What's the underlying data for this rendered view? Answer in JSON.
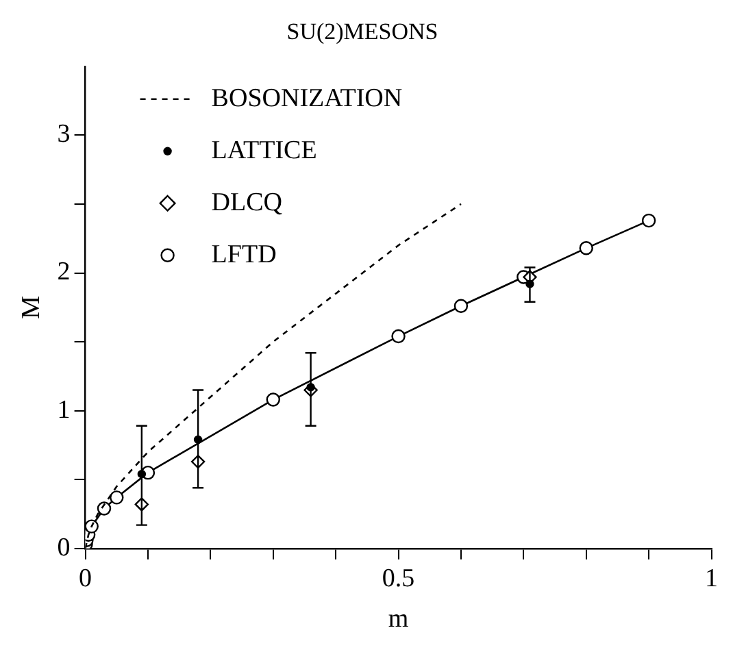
{
  "chart_data": {
    "type": "line",
    "title": "SU(2)MESONS",
    "xlabel": "m",
    "ylabel": "M",
    "xlim": [
      0,
      1
    ],
    "xticks": [
      0,
      {
        "value": 0.1,
        "label": null
      },
      {
        "value": 0.2,
        "label": null
      },
      {
        "value": 0.3,
        "label": null
      },
      {
        "value": 0.4,
        "label": null
      },
      0.5,
      {
        "value": 0.6,
        "label": null
      },
      {
        "value": 0.7,
        "label": null
      },
      {
        "value": 0.8,
        "label": null
      },
      {
        "value": 0.9,
        "label": null
      },
      1
    ],
    "ylim": [
      0,
      3.5
    ],
    "yticks": [
      0,
      {
        "value": 0.5,
        "label": null
      },
      1,
      {
        "value": 1.5,
        "label": null
      },
      2,
      {
        "value": 2.5,
        "label": null
      },
      3
    ],
    "grid": false,
    "legend": "top left",
    "series": [
      {
        "name": "BOSONIZATION",
        "type": "line",
        "color": "#000000",
        "line_style": "dashed",
        "marker": "none",
        "x": [
          0,
          0.005,
          0.01,
          0.02,
          0.05,
          0.1,
          0.2,
          0.3,
          0.4,
          0.5,
          0.6
        ],
        "values": [
          0,
          0.1,
          0.16,
          0.25,
          0.45,
          0.7,
          1.1,
          1.5,
          1.85,
          2.2,
          2.5
        ]
      },
      {
        "name": "LATTICE",
        "type": "scatter",
        "color": "#000000",
        "marker": "circle",
        "x": [
          0.09,
          0.18,
          0.36,
          0.71
        ],
        "values": [
          0.54,
          0.79,
          1.17,
          1.92
        ],
        "errors": [
          [
            0.17,
            0.89
          ],
          [
            0.44,
            1.15
          ],
          [
            0.89,
            1.42
          ],
          [
            1.79,
            2.04
          ]
        ]
      },
      {
        "name": "DLCQ",
        "type": "scatter",
        "color": "#000000",
        "marker": "diamond",
        "x": [
          0.09,
          0.18,
          0.36,
          0.71
        ],
        "values": [
          0.32,
          0.63,
          1.15,
          1.97
        ]
      },
      {
        "name": "LFTD",
        "type": "line",
        "color": "#000000",
        "line_style": "solid",
        "marker": "circle",
        "x": [
          0.001,
          0.002,
          0.005,
          0.01,
          0.03,
          0.05,
          0.1,
          0.3,
          0.5,
          0.6,
          0.7,
          0.8,
          0.9
        ],
        "values": [
          0.03,
          0.06,
          0.1,
          0.16,
          0.29,
          0.37,
          0.55,
          1.08,
          1.54,
          1.76,
          1.97,
          2.18,
          2.38
        ]
      }
    ]
  }
}
